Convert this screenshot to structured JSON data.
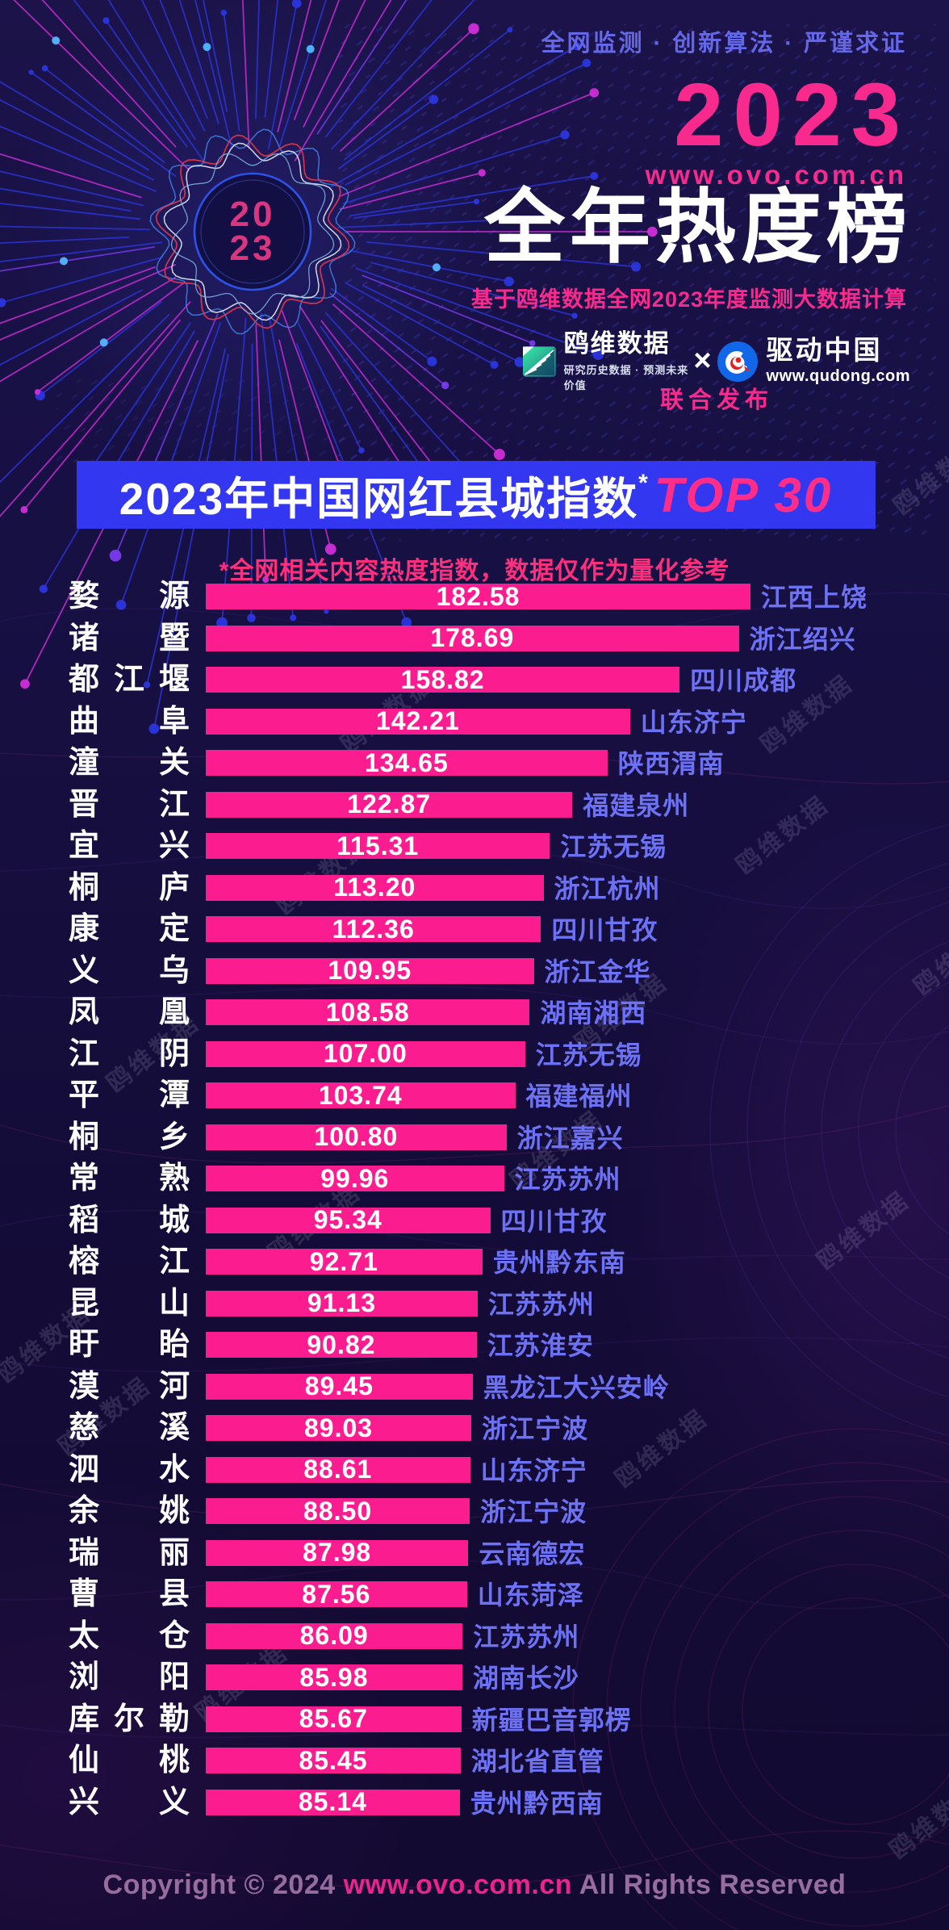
{
  "header": {
    "tagline": "全网监测 · 创新算法 · 严谨求证",
    "year": "2023",
    "site": "www.ovo.com.cn",
    "title": "全年热度榜",
    "subtitle": "基于鸥维数据全网2023年度监测大数据计算"
  },
  "emblem": {
    "line1": "20",
    "line2": "23"
  },
  "publishers": {
    "left_logo": {
      "name": "鸥维数据",
      "tagline": "研究历史数据 · 预测未来价值"
    },
    "separator": "×",
    "right_logo": {
      "name": "驱动中国",
      "site": "www.qudong.com"
    },
    "joint_label": "联合发布"
  },
  "banner": {
    "title_main": "2023年中国网红县城指数",
    "asterisk": "*",
    "title_accent": "TOP 30"
  },
  "note": "*全网相关内容热度指数，数据仅作为量化参考",
  "watermark": "鸥维数据",
  "footer": {
    "prefix": "Copyright © 2024 ",
    "link": "www.ovo.com.cn",
    "suffix": " All Rights Reserved"
  },
  "colors": {
    "bar": "#fb1d8f",
    "banner_blue": "#3338f0",
    "accent_pink": "#ff2d8a",
    "region_label": "#6d72f5",
    "tagline_blue": "#6468e8"
  },
  "chart_data": {
    "type": "bar",
    "orientation": "horizontal",
    "title": "2023年中国网红县城指数TOP30",
    "note": "全网相关内容热度指数，数据仅作为量化参考",
    "max_value": 182.58,
    "rows": [
      {
        "rank": 1,
        "name": "婺源",
        "value": "182.58",
        "region": "江西上饶"
      },
      {
        "rank": 2,
        "name": "诸暨",
        "value": "178.69",
        "region": "浙江绍兴"
      },
      {
        "rank": 3,
        "name": "都江堰",
        "value": "158.82",
        "region": "四川成都"
      },
      {
        "rank": 4,
        "name": "曲阜",
        "value": "142.21",
        "region": "山东济宁"
      },
      {
        "rank": 5,
        "name": "潼关",
        "value": "134.65",
        "region": "陕西渭南"
      },
      {
        "rank": 6,
        "name": "晋江",
        "value": "122.87",
        "region": "福建泉州"
      },
      {
        "rank": 7,
        "name": "宜兴",
        "value": "115.31",
        "region": "江苏无锡"
      },
      {
        "rank": 8,
        "name": "桐庐",
        "value": "113.20",
        "region": "浙江杭州"
      },
      {
        "rank": 9,
        "name": "康定",
        "value": "112.36",
        "region": "四川甘孜"
      },
      {
        "rank": 10,
        "name": "义乌",
        "value": "109.95",
        "region": "浙江金华"
      },
      {
        "rank": 11,
        "name": "凤凰",
        "value": "108.58",
        "region": "湖南湘西"
      },
      {
        "rank": 12,
        "name": "江阴",
        "value": "107.00",
        "region": "江苏无锡"
      },
      {
        "rank": 13,
        "name": "平潭",
        "value": "103.74",
        "region": "福建福州"
      },
      {
        "rank": 14,
        "name": "桐乡",
        "value": "100.80",
        "region": "浙江嘉兴"
      },
      {
        "rank": 15,
        "name": "常熟",
        "value": "99.96",
        "region": "江苏苏州"
      },
      {
        "rank": 16,
        "name": "稻城",
        "value": "95.34",
        "region": "四川甘孜"
      },
      {
        "rank": 17,
        "name": "榕江",
        "value": "92.71",
        "region": "贵州黔东南"
      },
      {
        "rank": 18,
        "name": "昆山",
        "value": "91.13",
        "region": "江苏苏州"
      },
      {
        "rank": 19,
        "name": "盱眙",
        "value": "90.82",
        "region": "江苏淮安"
      },
      {
        "rank": 20,
        "name": "漠河",
        "value": "89.45",
        "region": "黑龙江大兴安岭"
      },
      {
        "rank": 21,
        "name": "慈溪",
        "value": "89.03",
        "region": "浙江宁波"
      },
      {
        "rank": 22,
        "name": "泗水",
        "value": "88.61",
        "region": "山东济宁"
      },
      {
        "rank": 23,
        "name": "余姚",
        "value": "88.50",
        "region": "浙江宁波"
      },
      {
        "rank": 24,
        "name": "瑞丽",
        "value": "87.98",
        "region": "云南德宏"
      },
      {
        "rank": 25,
        "name": "曹县",
        "value": "87.56",
        "region": "山东菏泽"
      },
      {
        "rank": 26,
        "name": "太仓",
        "value": "86.09",
        "region": "江苏苏州"
      },
      {
        "rank": 27,
        "name": "浏阳",
        "value": "85.98",
        "region": "湖南长沙"
      },
      {
        "rank": 28,
        "name": "库尔勒",
        "value": "85.67",
        "region": "新疆巴音郭楞"
      },
      {
        "rank": 29,
        "name": "仙桃",
        "value": "85.45",
        "region": "湖北省直管"
      },
      {
        "rank": 30,
        "name": "兴义",
        "value": "85.14",
        "region": "贵州黔西南"
      }
    ]
  }
}
